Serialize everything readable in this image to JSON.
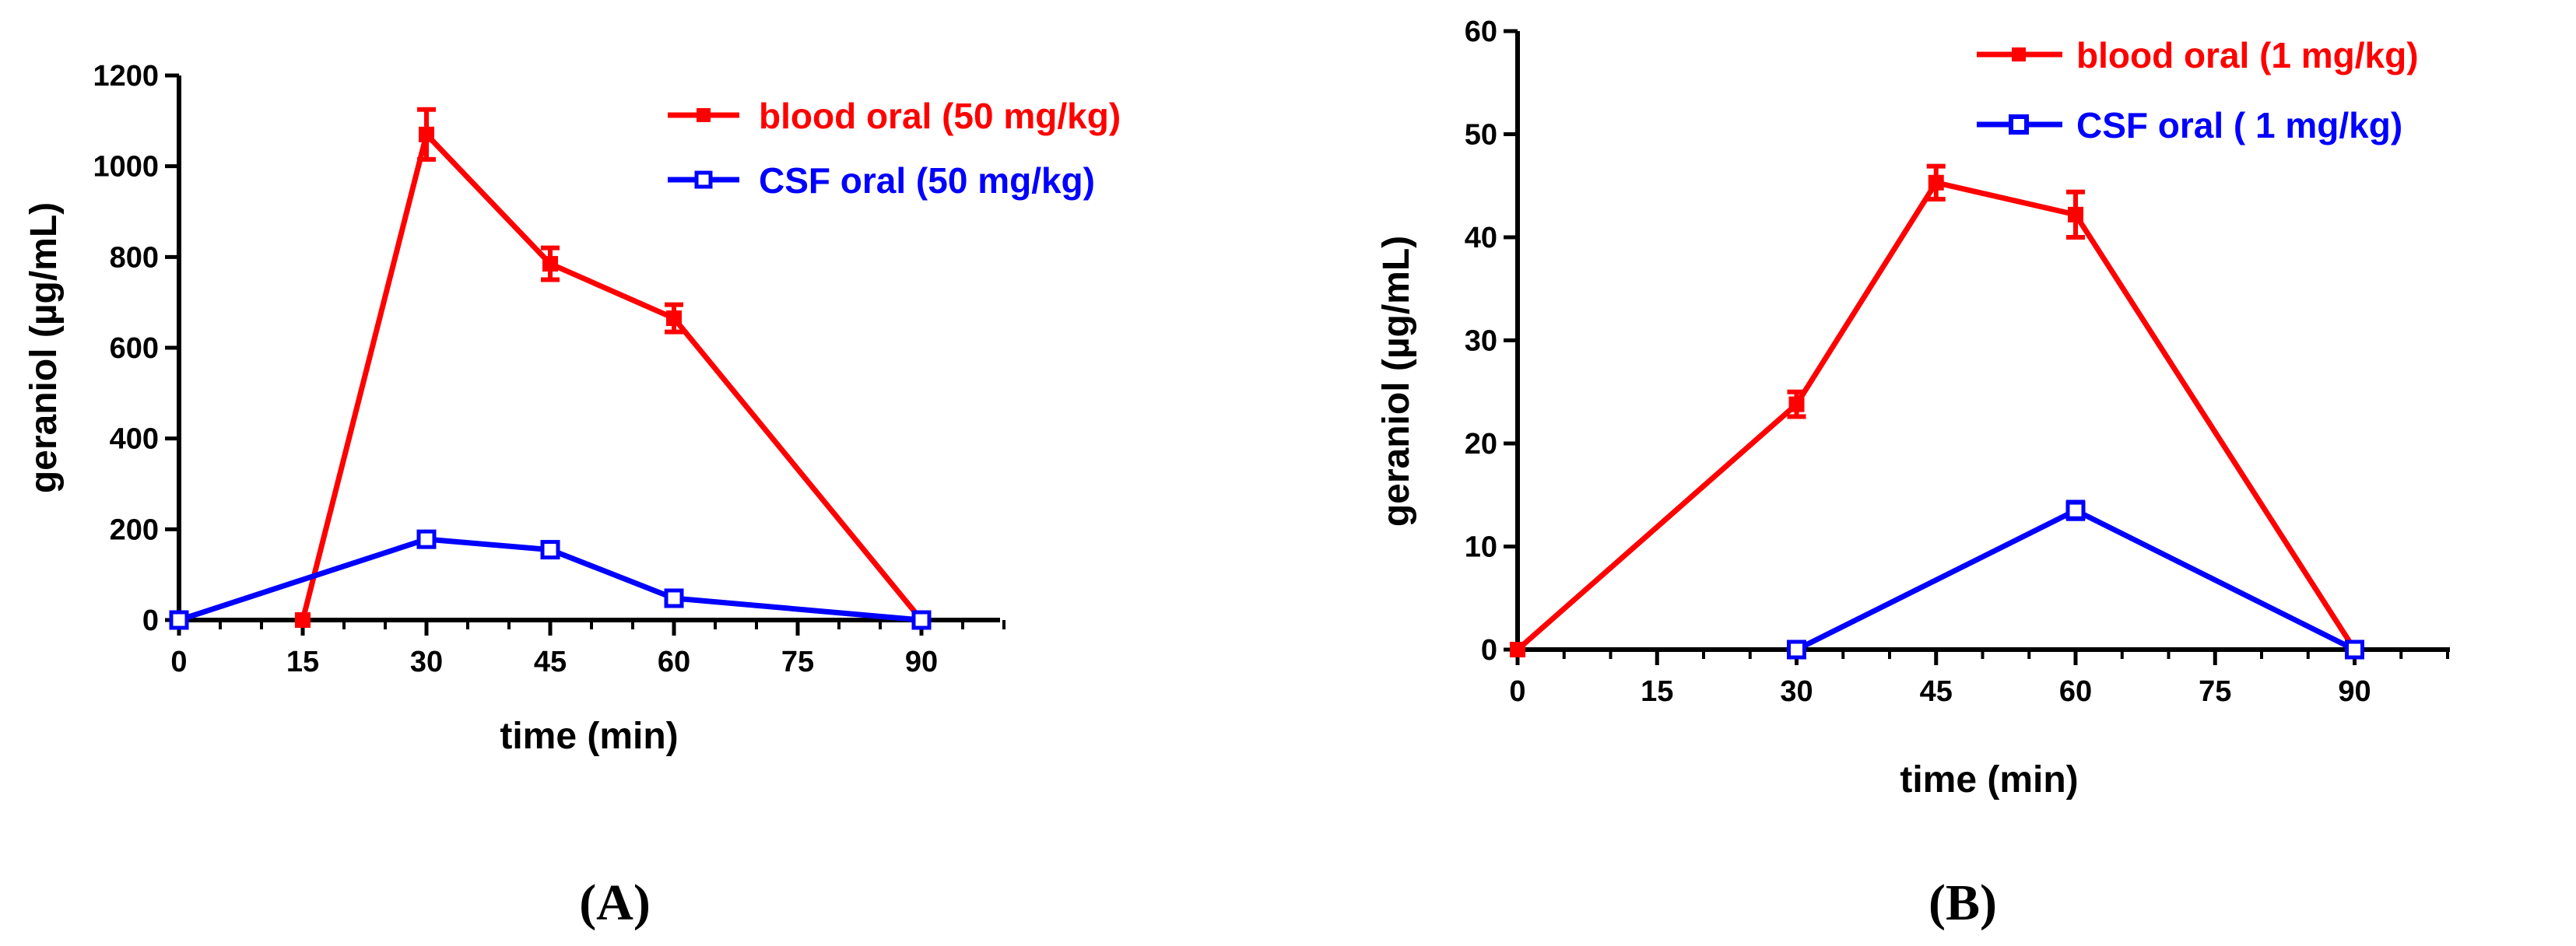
{
  "chart_data": [
    {
      "panel_label": "(A)",
      "type": "line",
      "xlabel": "time (min)",
      "ylabel": "geraniol (µg/mL)",
      "xlim": [
        0,
        100
      ],
      "ylim": [
        0,
        1200
      ],
      "xticks": [
        0,
        15,
        30,
        45,
        60,
        75,
        90
      ],
      "xtick_labels": [
        "0",
        "15",
        "30",
        "45",
        "60",
        "75",
        "90"
      ],
      "yticks": [
        0,
        200,
        400,
        600,
        800,
        1000,
        1200
      ],
      "ytick_labels": [
        "0",
        "200",
        "400",
        "600",
        "800",
        "1000",
        "1200"
      ],
      "legend_position": "top-right",
      "series": [
        {
          "name": "blood oral (50 mg/kg)",
          "color": "#ff0000",
          "marker": "filled-square",
          "x": [
            15,
            30,
            45,
            60,
            90
          ],
          "values": [
            0,
            1070,
            785,
            665,
            0
          ],
          "errors": [
            0,
            55,
            35,
            30,
            0
          ]
        },
        {
          "name": "CSF oral (50 mg/kg)",
          "color": "#0000ff",
          "marker": "open-square",
          "x": [
            0,
            30,
            45,
            60,
            90
          ],
          "values": [
            0,
            178,
            155,
            48,
            0
          ],
          "errors": [
            0,
            10,
            10,
            6,
            0
          ]
        }
      ]
    },
    {
      "panel_label": "(B)",
      "type": "line",
      "xlabel": "time (min)",
      "ylabel": "geraniol (µg/mL)",
      "xlim": [
        0,
        100
      ],
      "ylim": [
        0,
        60
      ],
      "xticks": [
        0,
        15,
        30,
        45,
        60,
        75,
        90
      ],
      "xtick_labels": [
        "0",
        "15",
        "30",
        "45",
        "60",
        "75",
        "90"
      ],
      "yticks": [
        0,
        10,
        20,
        30,
        40,
        50,
        60
      ],
      "ytick_labels": [
        "0",
        "10",
        "20",
        "30",
        "40",
        "50",
        "60"
      ],
      "legend_position": "top-right",
      "series": [
        {
          "name": "blood oral (1 mg/kg)",
          "color": "#ff0000",
          "marker": "filled-square",
          "x": [
            0,
            30,
            45,
            60,
            90
          ],
          "values": [
            0,
            23.8,
            45.3,
            42.2,
            0
          ],
          "errors": [
            0,
            1.2,
            1.6,
            2.2,
            0
          ]
        },
        {
          "name": "CSF oral ( 1 mg/kg)",
          "color": "#0000ff",
          "marker": "open-square",
          "x": [
            30,
            60,
            90
          ],
          "values": [
            0,
            13.5,
            0
          ],
          "errors": [
            0,
            0.8,
            0
          ]
        }
      ]
    }
  ]
}
